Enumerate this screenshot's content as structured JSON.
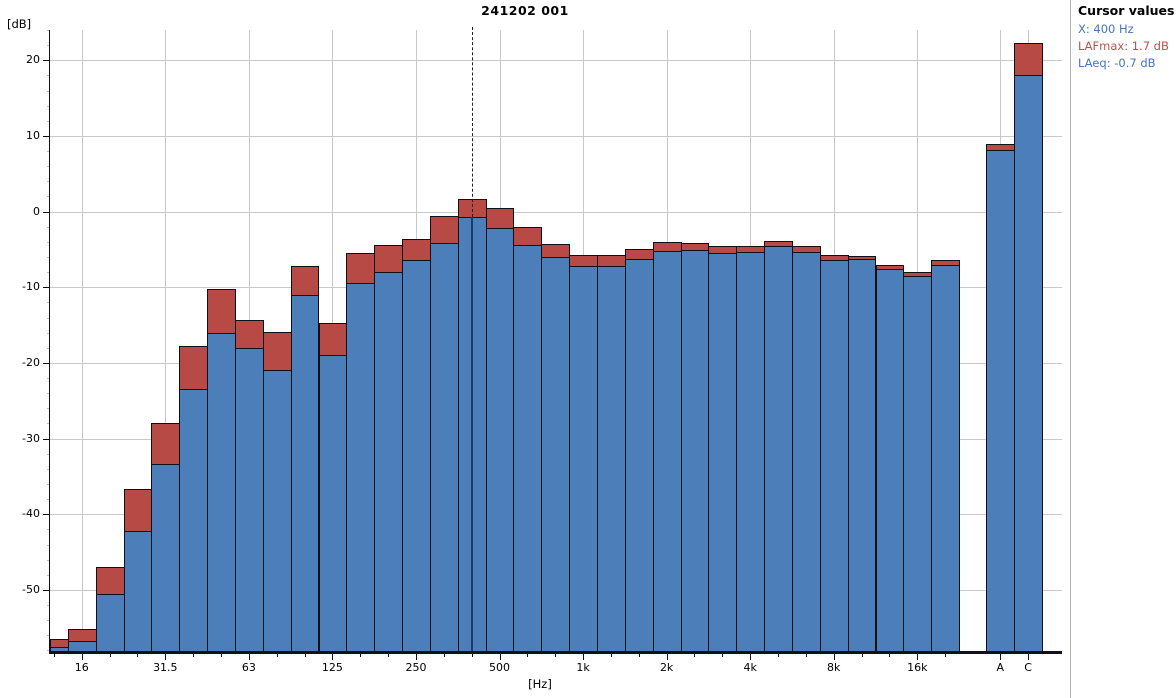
{
  "title": "241202 001",
  "y_axis": {
    "label": "[dB]",
    "ticks": [
      20,
      10,
      0,
      -10,
      -20,
      -30,
      -40,
      -50
    ]
  },
  "x_axis": {
    "label": "[Hz]",
    "octave_tick_labels": [
      "16",
      "31.5",
      "63",
      "125",
      "250",
      "500",
      "1k",
      "2k",
      "4k",
      "8k",
      "16k"
    ],
    "weighted_labels": [
      "A",
      "C"
    ]
  },
  "cursor_panel": {
    "title": "Cursor values",
    "x_line": "X: 400 Hz",
    "lafmax_line": "LAFmax: 1.7 dB",
    "laeq_line": "LAeq: -0.7 dB"
  },
  "colors": {
    "laeq_bar": "#4c7fba",
    "lafmax_bar": "#b84a45",
    "bar_border": "#101018",
    "gridline": "#c9c9c9",
    "minor_tick": "#b8b8b8",
    "axis": "#10101e",
    "tick": "#101018",
    "text_blue": "#4576c0",
    "text_red": "#c0504d",
    "panel_border": "#b3b3b3",
    "cursor_line": "#222222",
    "cursor_bar_line": "#1c3a6b"
  },
  "chart_data": {
    "type": "bar",
    "title": "241202 001",
    "xlabel": "[Hz]",
    "ylabel": "[dB]",
    "ylim": [
      -58.2,
      24.0
    ],
    "grid": true,
    "legend_position": "none",
    "series_names": [
      "LAFmax",
      "LAeq"
    ],
    "octave_tick_indices": [
      1,
      4,
      7,
      10,
      13,
      16,
      19,
      22,
      25,
      28,
      31
    ],
    "bands": [
      {
        "freq": "12.5",
        "lafmax": -56.5,
        "laeq": -57.5
      },
      {
        "freq": "16",
        "lafmax": -55.1,
        "laeq": -56.8
      },
      {
        "freq": "20",
        "lafmax": -47.0,
        "laeq": -50.6
      },
      {
        "freq": "25",
        "lafmax": -36.7,
        "laeq": -42.2
      },
      {
        "freq": "31.5",
        "lafmax": -28.0,
        "laeq": -33.4
      },
      {
        "freq": "40",
        "lafmax": -17.8,
        "laeq": -23.4
      },
      {
        "freq": "50",
        "lafmax": -10.2,
        "laeq": -16.1
      },
      {
        "freq": "63",
        "lafmax": -14.3,
        "laeq": -18.0
      },
      {
        "freq": "80",
        "lafmax": -15.9,
        "laeq": -20.9
      },
      {
        "freq": "100",
        "lafmax": -7.2,
        "laeq": -11.0
      },
      {
        "freq": "125",
        "lafmax": -14.7,
        "laeq": -18.9
      },
      {
        "freq": "160",
        "lafmax": -5.5,
        "laeq": -9.4
      },
      {
        "freq": "200",
        "lafmax": -4.4,
        "laeq": -8.0
      },
      {
        "freq": "250",
        "lafmax": -3.6,
        "laeq": -6.4
      },
      {
        "freq": "315",
        "lafmax": -0.6,
        "laeq": -4.2
      },
      {
        "freq": "400",
        "lafmax": 1.7,
        "laeq": -0.7
      },
      {
        "freq": "500",
        "lafmax": 0.5,
        "laeq": -2.2
      },
      {
        "freq": "630",
        "lafmax": -2.1,
        "laeq": -4.4
      },
      {
        "freq": "800",
        "lafmax": -4.3,
        "laeq": -6.0
      },
      {
        "freq": "1k",
        "lafmax": -5.8,
        "laeq": -7.2
      },
      {
        "freq": "1.25k",
        "lafmax": -5.8,
        "laeq": -7.2
      },
      {
        "freq": "1.6k",
        "lafmax": -5.0,
        "laeq": -6.3
      },
      {
        "freq": "2k",
        "lafmax": -4.0,
        "laeq": -5.2
      },
      {
        "freq": "2.5k",
        "lafmax": -4.1,
        "laeq": -5.1
      },
      {
        "freq": "3.15k",
        "lafmax": -4.5,
        "laeq": -5.5
      },
      {
        "freq": "4k",
        "lafmax": -4.6,
        "laeq": -5.3
      },
      {
        "freq": "5k",
        "lafmax": -3.9,
        "laeq": -4.6
      },
      {
        "freq": "6.3k",
        "lafmax": -4.5,
        "laeq": -5.3
      },
      {
        "freq": "8k",
        "lafmax": -5.7,
        "laeq": -6.4
      },
      {
        "freq": "10k",
        "lafmax": -5.9,
        "laeq": -6.3
      },
      {
        "freq": "12.5k",
        "lafmax": -7.0,
        "laeq": -7.6
      },
      {
        "freq": "16k",
        "lafmax": -8.0,
        "laeq": -8.5
      },
      {
        "freq": "20k",
        "lafmax": -6.4,
        "laeq": -7.0
      }
    ],
    "weighted_bands": [
      {
        "freq": "A",
        "lafmax": 9.0,
        "laeq": 8.2
      },
      {
        "freq": "C",
        "lafmax": 22.3,
        "laeq": 18.0
      }
    ],
    "cursor": {
      "band_index": 15,
      "freq": "400",
      "lafmax": 1.7,
      "laeq": -0.7
    }
  }
}
